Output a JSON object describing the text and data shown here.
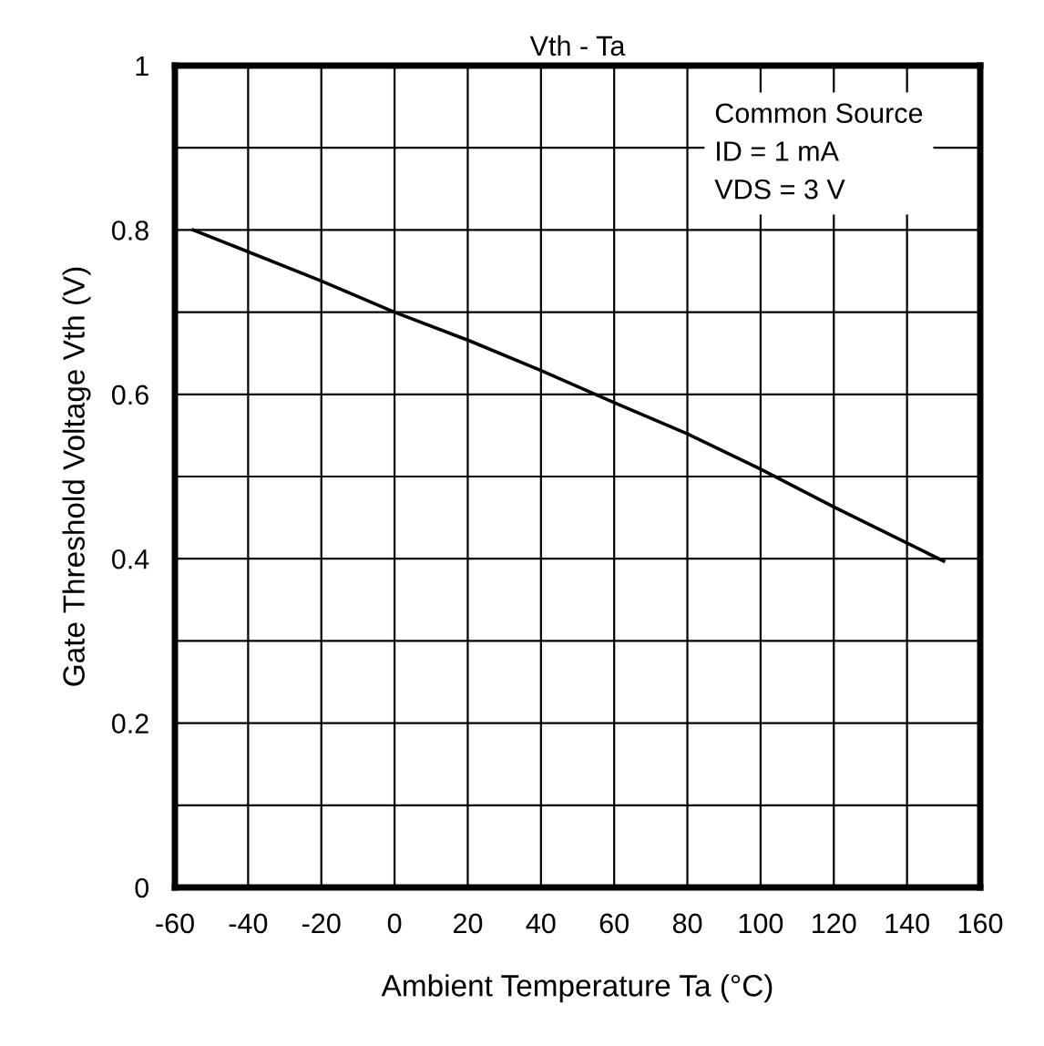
{
  "chart_data": {
    "type": "line",
    "title": "Vth - Ta",
    "xlabel": "Ambient Temperature Ta (°C)",
    "ylabel": "Gate Threshold Voltage Vth (V)",
    "annotations": [
      "Common Source\nID = 1 mA\nVDS = 3 V"
    ],
    "series": [
      {
        "color": "#000000",
        "x": [
          -55,
          -20,
          0,
          20,
          40,
          60,
          80,
          100,
          120,
          150
        ],
        "values": [
          0.8,
          0.738,
          0.7,
          0.666,
          0.629,
          0.59,
          0.552,
          0.509,
          0.463,
          0.397
        ]
      }
    ],
    "xlim": [
      -60,
      160
    ],
    "xticks": [
      -60,
      -40,
      -20,
      0,
      20,
      40,
      60,
      80,
      100,
      120,
      140,
      160
    ],
    "ylim": [
      0,
      1
    ],
    "yticks": [
      0,
      {
        "value": 0.1,
        "label": null
      },
      0.2,
      {
        "value": 0.3,
        "label": null
      },
      0.4,
      {
        "value": 0.5,
        "label": null
      },
      0.6,
      {
        "value": 0.7,
        "label": null
      },
      0.8,
      {
        "value": 0.9,
        "label": null
      },
      1
    ],
    "grid": true,
    "legend": false,
    "marker": "none",
    "line_style": "solid"
  }
}
